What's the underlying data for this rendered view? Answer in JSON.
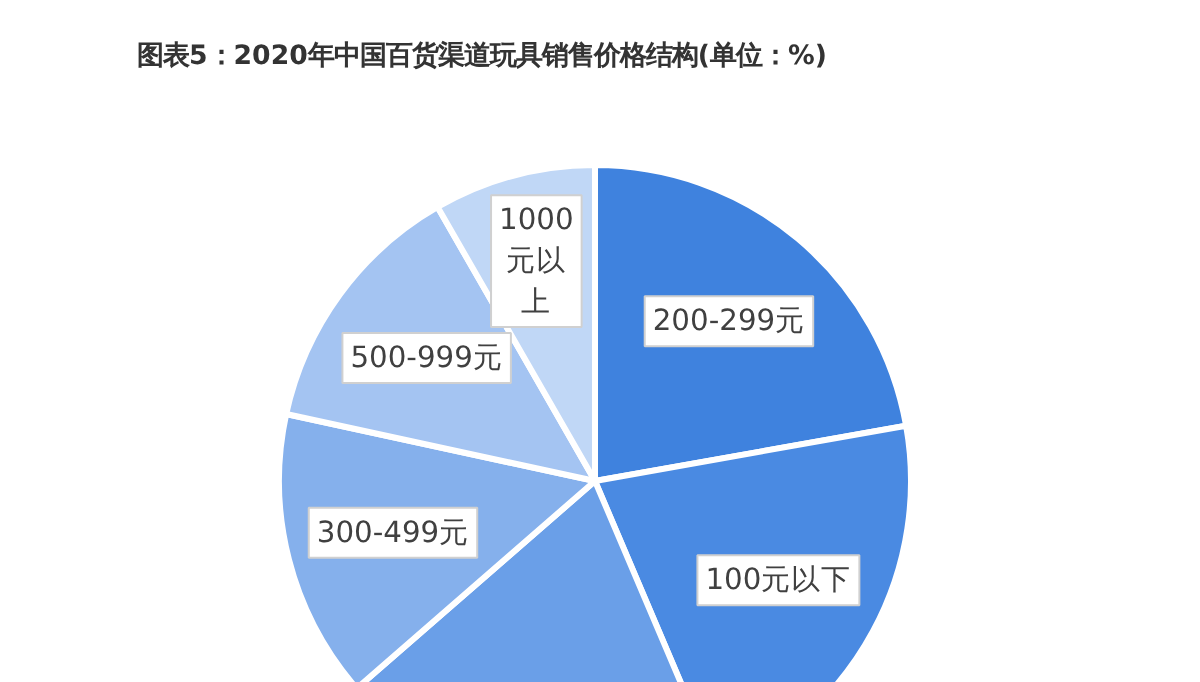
{
  "chart_data": {
    "type": "pie",
    "title": "图表5：2020年中国百货渠道玩具销售价格结构(单位：%)",
    "categories": [
      "200-299元",
      "100元以下",
      null,
      "300-499元",
      "500-999元",
      "1000元以上"
    ],
    "values": [
      22.2,
      21.4,
      20.0,
      14.8,
      13.3,
      8.3
    ],
    "colors": [
      "#3f82de",
      "#4a8ae2",
      "#6a9fe8",
      "#85b0ec",
      "#a4c4f2",
      "#c0d7f6"
    ]
  }
}
